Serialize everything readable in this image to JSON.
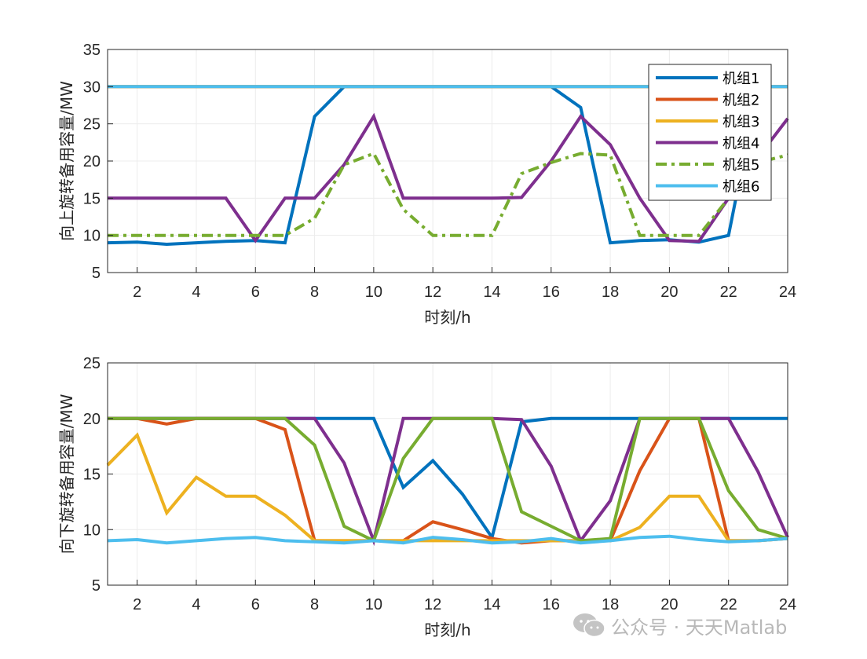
{
  "chart_data": [
    {
      "type": "line",
      "xlabel": "时刻/h",
      "ylabel": "向上旋转备用容量/MW",
      "xlim": [
        1,
        24
      ],
      "ylim": [
        5,
        35
      ],
      "xticks": [
        2,
        4,
        6,
        8,
        10,
        12,
        14,
        16,
        18,
        20,
        22,
        24
      ],
      "yticks": [
        5,
        10,
        15,
        20,
        25,
        30,
        35
      ],
      "grid": true,
      "legend_position": "top-right",
      "x": [
        1,
        2,
        3,
        4,
        5,
        6,
        7,
        8,
        9,
        10,
        11,
        12,
        13,
        14,
        15,
        16,
        17,
        18,
        19,
        20,
        21,
        22,
        23,
        24
      ],
      "series": [
        {
          "name": "机组1",
          "color": "#0072BD",
          "dash": "solid",
          "values": [
            9,
            9.1,
            8.8,
            9,
            9.2,
            9.3,
            9,
            26,
            30,
            30,
            30,
            30,
            30,
            30,
            30,
            30,
            27.2,
            9,
            9.3,
            9.4,
            9.1,
            10,
            30,
            30
          ]
        },
        {
          "name": "机组2",
          "color": "#D95319",
          "dash": "solid",
          "values": [
            30,
            30,
            30,
            30,
            30,
            30,
            30,
            30,
            30,
            30,
            30,
            30,
            30,
            30,
            30,
            30,
            30,
            30,
            30,
            30,
            30,
            30,
            30,
            30
          ]
        },
        {
          "name": "机组3",
          "color": "#EDB120",
          "dash": "solid",
          "values": [
            30,
            30,
            30,
            30,
            30,
            30,
            30,
            30,
            30,
            30,
            30,
            30,
            30,
            30,
            30,
            30,
            30,
            30,
            30,
            30,
            30,
            30,
            30,
            30
          ]
        },
        {
          "name": "机组4",
          "color": "#7E2F8E",
          "dash": "solid",
          "values": [
            15,
            15,
            15,
            15,
            15,
            9.3,
            15,
            15,
            19.5,
            26,
            15,
            15,
            15,
            15,
            15.1,
            20,
            26,
            22.2,
            15,
            9.3,
            9.2,
            15,
            20.5,
            25.7
          ]
        },
        {
          "name": "机组5",
          "color": "#77AC30",
          "dash": "dashdot",
          "values": [
            10,
            10,
            10,
            10,
            10,
            10,
            10,
            12.3,
            19.5,
            21,
            13.5,
            10,
            10,
            10,
            18.3,
            19.8,
            21,
            20.8,
            10,
            10,
            10,
            15,
            19.8,
            20.8
          ]
        },
        {
          "name": "机组6",
          "color": "#4DBEEE",
          "dash": "solid",
          "values": [
            30,
            30,
            30,
            30,
            30,
            30,
            30,
            30,
            30,
            30,
            30,
            30,
            30,
            30,
            30,
            30,
            30,
            30,
            30,
            30,
            30,
            30,
            30,
            30
          ]
        }
      ]
    },
    {
      "type": "line",
      "xlabel": "时刻/h",
      "ylabel": "向下旋转备用容量/MW",
      "xlim": [
        1,
        24
      ],
      "ylim": [
        5,
        25
      ],
      "xticks": [
        2,
        4,
        6,
        8,
        10,
        12,
        14,
        16,
        18,
        20,
        22,
        24
      ],
      "yticks": [
        5,
        10,
        15,
        20,
        25
      ],
      "grid": true,
      "x": [
        1,
        2,
        3,
        4,
        5,
        6,
        7,
        8,
        9,
        10,
        11,
        12,
        13,
        14,
        15,
        16,
        17,
        18,
        19,
        20,
        21,
        22,
        23,
        24
      ],
      "series": [
        {
          "name": "机组1",
          "color": "#0072BD",
          "dash": "solid",
          "values": [
            20,
            20,
            20,
            20,
            20,
            20,
            20,
            20,
            20,
            20,
            13.8,
            16.2,
            13.2,
            9.3,
            19.7,
            20,
            20,
            20,
            20,
            20,
            20,
            20,
            20,
            20
          ]
        },
        {
          "name": "机组2",
          "color": "#D95319",
          "dash": "solid",
          "values": [
            20,
            20,
            19.5,
            20,
            20,
            20,
            19,
            9,
            9,
            9,
            9,
            10.7,
            10,
            9.2,
            8.8,
            9,
            9,
            9,
            15.3,
            20,
            20,
            9,
            9,
            9.2
          ]
        },
        {
          "name": "机组3",
          "color": "#EDB120",
          "dash": "solid",
          "values": [
            15.8,
            18.5,
            11.5,
            14.7,
            13,
            13,
            11.3,
            9,
            9,
            9,
            9,
            9,
            9,
            9,
            9,
            9,
            9,
            9,
            10.2,
            13,
            13,
            9,
            9,
            9.2
          ]
        },
        {
          "name": "机组4",
          "color": "#7E2F8E",
          "dash": "solid",
          "values": [
            20,
            20,
            20,
            20,
            20,
            20,
            20,
            20,
            16,
            9,
            20,
            20,
            20,
            20,
            19.9,
            15.7,
            9,
            12.6,
            20,
            20,
            20,
            20,
            15.2,
            9.3
          ]
        },
        {
          "name": "机组5",
          "color": "#77AC30",
          "dash": "solid",
          "values": [
            20,
            20,
            20,
            20,
            20,
            20,
            20,
            17.6,
            10.3,
            9,
            16.4,
            20,
            20,
            20,
            11.6,
            10.3,
            9,
            9.2,
            20,
            20,
            20,
            13.5,
            10,
            9.2
          ]
        },
        {
          "name": "机组6",
          "color": "#4DBEEE",
          "dash": "solid",
          "values": [
            9,
            9.1,
            8.8,
            9,
            9.2,
            9.3,
            9,
            8.9,
            8.8,
            9,
            8.8,
            9.3,
            9.1,
            8.8,
            8.9,
            9.2,
            8.8,
            9,
            9.3,
            9.4,
            9.1,
            8.9,
            9,
            9.2
          ]
        }
      ]
    }
  ],
  "watermark": {
    "icon": "wechat-icon",
    "text": "公众号 · 天天Matlab"
  }
}
